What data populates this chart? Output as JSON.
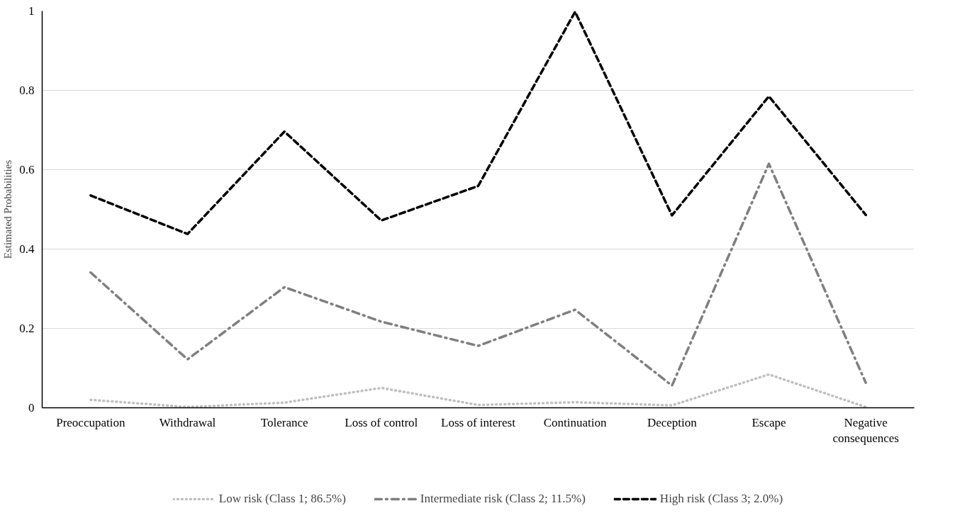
{
  "chart_data": {
    "type": "line",
    "ylabel": "Estimated Probabilities",
    "categories": [
      "Preoccupation",
      "Withdrawal",
      "Tolerance",
      "Loss of control",
      "Loss of interest",
      "Continuation",
      "Deception",
      "Escape",
      "Negative consequences"
    ],
    "series": [
      {
        "name": "Low risk (Class 1; 86.5%)",
        "color": "#bfbfbf",
        "line_style": "dotted",
        "values": [
          0.02,
          0.002,
          0.013,
          0.05,
          0.007,
          0.014,
          0.006,
          0.084,
          0.002
        ]
      },
      {
        "name": "Intermediate risk (Class 2; 11.5%)",
        "color": "#7f7f7f",
        "line_style": "dashdot",
        "values": [
          0.341,
          0.122,
          0.304,
          0.217,
          0.156,
          0.247,
          0.056,
          0.615,
          0.063
        ]
      },
      {
        "name": "High risk (Class 3; 2.0%)",
        "color": "#000000",
        "line_style": "dashed",
        "values": [
          0.535,
          0.438,
          0.696,
          0.472,
          0.559,
          0.998,
          0.485,
          0.785,
          0.486
        ]
      }
    ],
    "ylim": [
      0,
      1
    ],
    "yticks": [
      0,
      {
        "value": 0.2,
        "label": "0.2"
      },
      {
        "value": 0.4,
        "label": "0.4"
      },
      {
        "value": 0.6,
        "label": "0.6"
      },
      {
        "value": 0.8,
        "label": "0.8"
      },
      1
    ],
    "grid": "y",
    "legend": "bottom",
    "marker": "none"
  }
}
